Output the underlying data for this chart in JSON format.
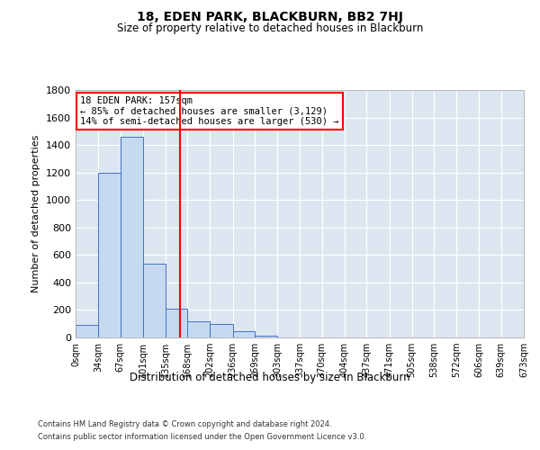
{
  "title": "18, EDEN PARK, BLACKBURN, BB2 7HJ",
  "subtitle": "Size of property relative to detached houses in Blackburn",
  "xlabel": "Distribution of detached houses by size in Blackburn",
  "ylabel": "Number of detached properties",
  "footnote1": "Contains HM Land Registry data © Crown copyright and database right 2024.",
  "footnote2": "Contains public sector information licensed under the Open Government Licence v3.0.",
  "annotation_line1": "18 EDEN PARK: 157sqm",
  "annotation_line2": "← 85% of detached houses are smaller (3,129)",
  "annotation_line3": "14% of semi-detached houses are larger (530) →",
  "property_size": 157,
  "bin_edges": [
    0,
    34,
    67,
    101,
    135,
    168,
    202,
    236,
    269,
    303,
    337,
    370,
    404,
    437,
    471,
    505,
    538,
    572,
    606,
    639,
    673
  ],
  "bin_counts": [
    90,
    1200,
    1460,
    540,
    210,
    120,
    95,
    45,
    15,
    0,
    0,
    0,
    0,
    0,
    0,
    0,
    0,
    0,
    0,
    0
  ],
  "bar_color": "#c5d9f1",
  "bar_edge_color": "#4472c4",
  "vline_color": "#ff0000",
  "annotation_box_edge_color": "#ff0000",
  "background_color": "#ffffff",
  "axes_bg_color": "#dce6f1",
  "grid_color": "#ffffff",
  "ylim": [
    0,
    1800
  ],
  "yticks": [
    0,
    200,
    400,
    600,
    800,
    1000,
    1200,
    1400,
    1600,
    1800
  ]
}
